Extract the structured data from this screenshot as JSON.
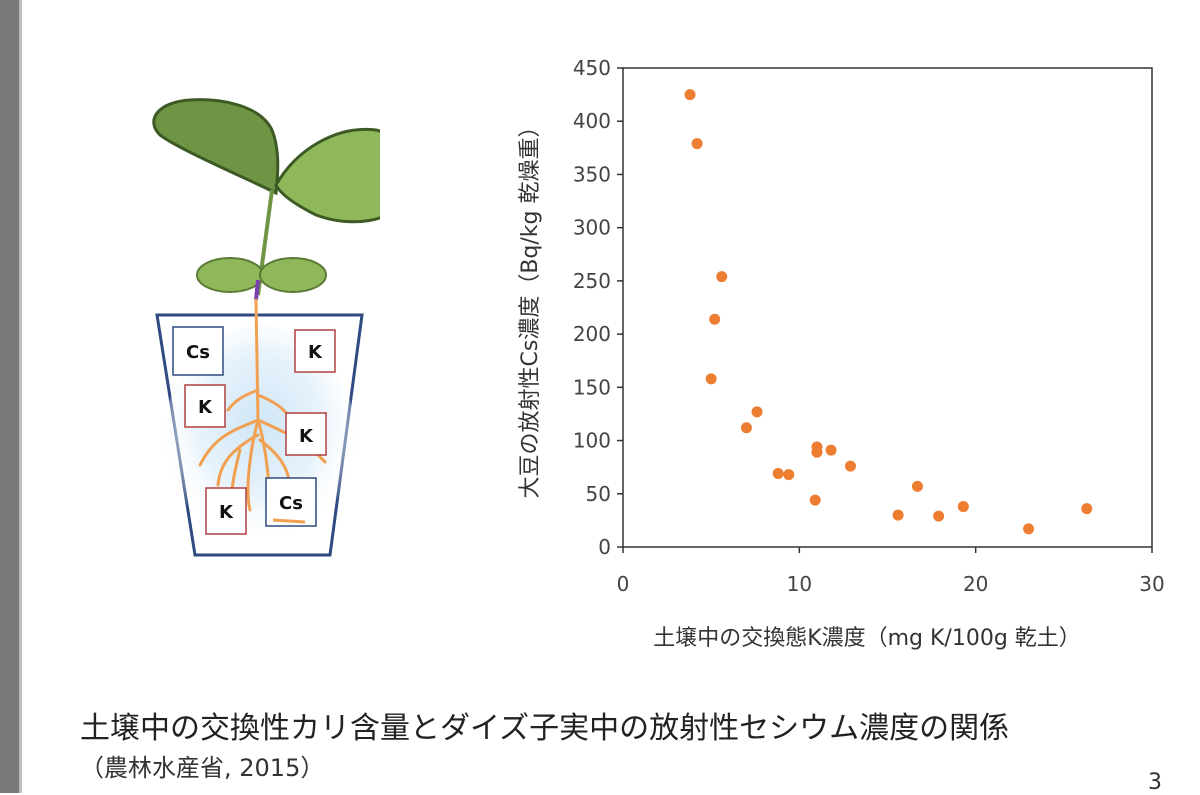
{
  "illustration": {
    "labels": [
      "Cs",
      "K",
      "K",
      "K",
      "K",
      "Cs"
    ]
  },
  "chart_data": {
    "type": "scatter",
    "xlabel": "土壌中の交換態K濃度（mg K/100g 乾土）",
    "ylabel": "大豆の放射性Cs濃度（Bq/kg 乾燥重）",
    "xlim": [
      0,
      30
    ],
    "ylim": [
      0,
      450
    ],
    "xticks": [
      0,
      10,
      20,
      30
    ],
    "yticks": [
      0,
      50,
      100,
      150,
      200,
      250,
      300,
      350,
      400,
      450
    ],
    "grid": false,
    "color": "#ED7D31",
    "points": [
      {
        "x": 3.8,
        "y": 425
      },
      {
        "x": 4.2,
        "y": 379
      },
      {
        "x": 5.6,
        "y": 254
      },
      {
        "x": 5.2,
        "y": 214
      },
      {
        "x": 5.0,
        "y": 158
      },
      {
        "x": 7.6,
        "y": 127
      },
      {
        "x": 7.0,
        "y": 112
      },
      {
        "x": 11.0,
        "y": 94
      },
      {
        "x": 11.8,
        "y": 91
      },
      {
        "x": 11.0,
        "y": 89
      },
      {
        "x": 8.8,
        "y": 69
      },
      {
        "x": 9.4,
        "y": 68
      },
      {
        "x": 12.9,
        "y": 76
      },
      {
        "x": 10.9,
        "y": 44
      },
      {
        "x": 16.7,
        "y": 57
      },
      {
        "x": 15.6,
        "y": 30
      },
      {
        "x": 17.9,
        "y": 29
      },
      {
        "x": 19.3,
        "y": 38
      },
      {
        "x": 23.0,
        "y": 17
      },
      {
        "x": 26.3,
        "y": 36
      }
    ]
  },
  "caption": {
    "title": "土壌中の交換性カリ含量とダイズ子実中の放射性セシウム濃度の関係",
    "source": "（農林水産省, 2015）"
  },
  "page_number": "3"
}
